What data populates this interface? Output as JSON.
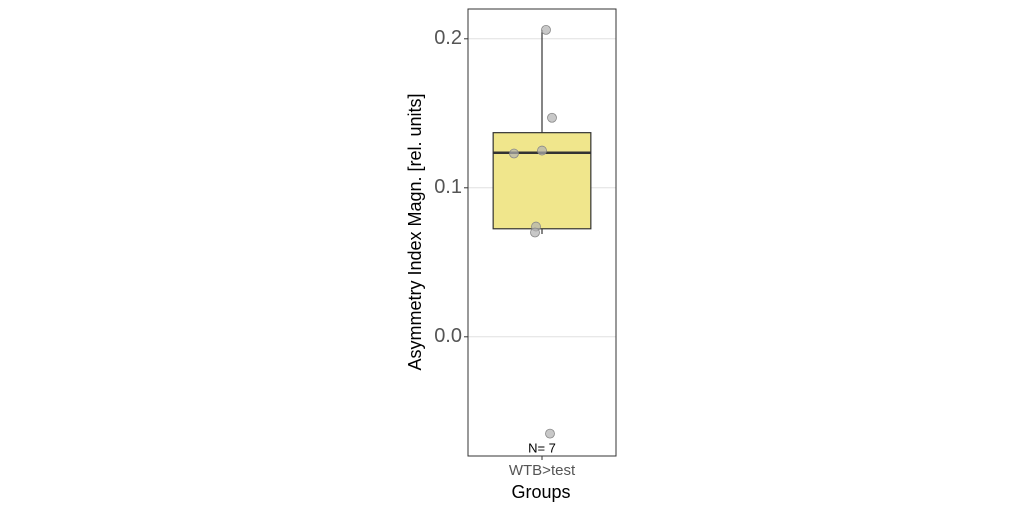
{
  "chart_data": {
    "type": "box",
    "xlabel": "Groups",
    "ylabel": "Asymmetry Index Magn. [rel. units]",
    "categories": [
      "WTB>test"
    ],
    "boxes": [
      {
        "min": 0.069,
        "q1": 0.0725,
        "median": 0.1235,
        "q3": 0.137,
        "max": 0.206
      }
    ],
    "points": [
      0.206,
      0.147,
      0.123,
      0.125,
      0.074,
      0.07,
      -0.065
    ],
    "annotation": "N= 7",
    "color": "#f0e68c",
    "point_color": "#b0b0b0",
    "ylim": [
      -0.08,
      0.22
    ],
    "yticks": [
      {
        "value": 0,
        "label": "0.0"
      },
      0.1,
      0.2
    ],
    "grid": true
  }
}
